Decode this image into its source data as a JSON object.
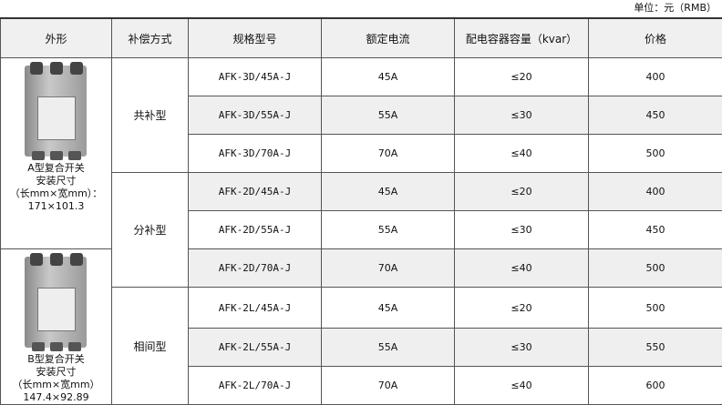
{
  "unit_note": "单位：元（RMB）",
  "headers": [
    "外形",
    "补偿方式",
    "规格型号",
    "额定电流",
    "配电容器容量（kvar）",
    "价格"
  ],
  "figures": [
    {
      "lines": [
        "A型复合开关",
        "安装尺寸",
        "（长mm×宽mm）：",
        "171×101.3"
      ],
      "icon": "switch-device-image-a"
    },
    {
      "lines": [
        "B型复合开关",
        "安装尺寸",
        "（长mm×宽mm）",
        "147.4×92.89"
      ],
      "icon": "switch-device-image-b"
    }
  ],
  "groups": [
    {
      "type": "共补型",
      "rows": [
        {
          "model": "AFK-3D/45A-J",
          "current": "45A",
          "capacity": "≤20",
          "price": "400"
        },
        {
          "model": "AFK-3D/55A-J",
          "current": "55A",
          "capacity": "≤30",
          "price": "450"
        },
        {
          "model": "AFK-3D/70A-J",
          "current": "70A",
          "capacity": "≤40",
          "price": "500"
        }
      ]
    },
    {
      "type": "分补型",
      "rows": [
        {
          "model": "AFK-2D/45A-J",
          "current": "45A",
          "capacity": "≤20",
          "price": "400"
        },
        {
          "model": "AFK-2D/55A-J",
          "current": "55A",
          "capacity": "≤30",
          "price": "450"
        },
        {
          "model": "AFK-2D/70A-J",
          "current": "70A",
          "capacity": "≤40",
          "price": "500"
        }
      ]
    },
    {
      "type": "相间型",
      "rows": [
        {
          "model": "AFK-2L/45A-J",
          "current": "45A",
          "capacity": "≤20",
          "price": "500"
        },
        {
          "model": "AFK-2L/55A-J",
          "current": "55A",
          "capacity": "≤30",
          "price": "550"
        },
        {
          "model": "AFK-2L/70A-J",
          "current": "70A",
          "capacity": "≤40",
          "price": "600"
        }
      ]
    }
  ]
}
